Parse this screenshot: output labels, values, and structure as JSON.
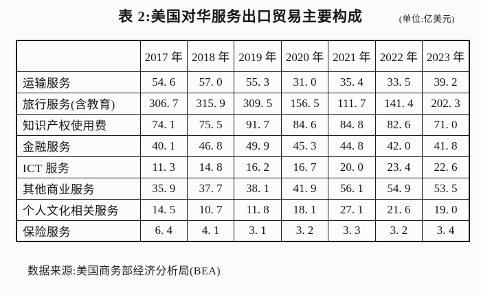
{
  "title": "表 2:美国对华服务出口贸易主要构成",
  "unit_label": "(单位:亿美元)",
  "table": {
    "header": [
      "",
      "2017 年",
      "2018 年",
      "2019 年",
      "2020 年",
      "2021 年",
      "2022 年",
      "2023 年"
    ],
    "rows": [
      {
        "label": "运输服务",
        "values": [
          "54. 6",
          "57. 0",
          "55. 3",
          "31. 0",
          "35. 4",
          "33. 5",
          "39. 2"
        ]
      },
      {
        "label": "旅行服务(含教育)",
        "values": [
          "306. 7",
          "315. 9",
          "309. 5",
          "156. 5",
          "111. 7",
          "141. 4",
          "202. 3"
        ]
      },
      {
        "label": "知识产权使用费",
        "values": [
          "74. 1",
          "75. 5",
          "91. 7",
          "84. 6",
          "84. 8",
          "82. 6",
          "71. 0"
        ]
      },
      {
        "label": "金融服务",
        "values": [
          "40. 1",
          "46. 8",
          "49. 9",
          "45. 3",
          "44. 8",
          "42. 0",
          "41. 8"
        ]
      },
      {
        "label": "ICT 服务",
        "values": [
          "11. 3",
          "14. 8",
          "16. 2",
          "16. 7",
          "20. 0",
          "23. 4",
          "22. 6"
        ]
      },
      {
        "label": "其他商业服务",
        "values": [
          "35. 9",
          "37. 7",
          "38. 1",
          "41. 9",
          "56. 1",
          "54. 9",
          "53. 5"
        ]
      },
      {
        "label": "个人文化相关服务",
        "values": [
          "14. 5",
          "10. 7",
          "11. 8",
          "18. 1",
          "27. 1",
          "21. 6",
          "19. 0"
        ]
      },
      {
        "label": "保险服务",
        "values": [
          "6. 4",
          "4. 1",
          "3. 1",
          "3. 2",
          "3. 3",
          "3. 2",
          "3. 4"
        ]
      }
    ]
  },
  "footer": {
    "source": "数据来源:美国商务部经济分析局(BEA)"
  },
  "colors": {
    "background": "#fbfbfa",
    "border": "#1c1c1c",
    "text": "#151515"
  },
  "chart_data": {
    "type": "table",
    "title": "表 2:美国对华服务出口贸易主要构成",
    "unit": "亿美元",
    "columns": [
      "2017",
      "2018",
      "2019",
      "2020",
      "2021",
      "2022",
      "2023"
    ],
    "series": [
      {
        "name": "运输服务",
        "values": [
          54.6,
          57.0,
          55.3,
          31.0,
          35.4,
          33.5,
          39.2
        ]
      },
      {
        "name": "旅行服务(含教育)",
        "values": [
          306.7,
          315.9,
          309.5,
          156.5,
          111.7,
          141.4,
          202.3
        ]
      },
      {
        "name": "知识产权使用费",
        "values": [
          74.1,
          75.5,
          91.7,
          84.6,
          84.8,
          82.6,
          71.0
        ]
      },
      {
        "name": "金融服务",
        "values": [
          40.1,
          46.8,
          49.9,
          45.3,
          44.8,
          42.0,
          41.8
        ]
      },
      {
        "name": "ICT 服务",
        "values": [
          11.3,
          14.8,
          16.2,
          16.7,
          20.0,
          23.4,
          22.6
        ]
      },
      {
        "name": "其他商业服务",
        "values": [
          35.9,
          37.7,
          38.1,
          41.9,
          56.1,
          54.9,
          53.5
        ]
      },
      {
        "name": "个人文化相关服务",
        "values": [
          14.5,
          10.7,
          11.8,
          18.1,
          27.1,
          21.6,
          19.0
        ]
      },
      {
        "name": "保险服务",
        "values": [
          6.4,
          4.1,
          3.1,
          3.2,
          3.3,
          3.2,
          3.4
        ]
      }
    ],
    "source": "数据来源:美国商务部经济分析局(BEA)"
  }
}
